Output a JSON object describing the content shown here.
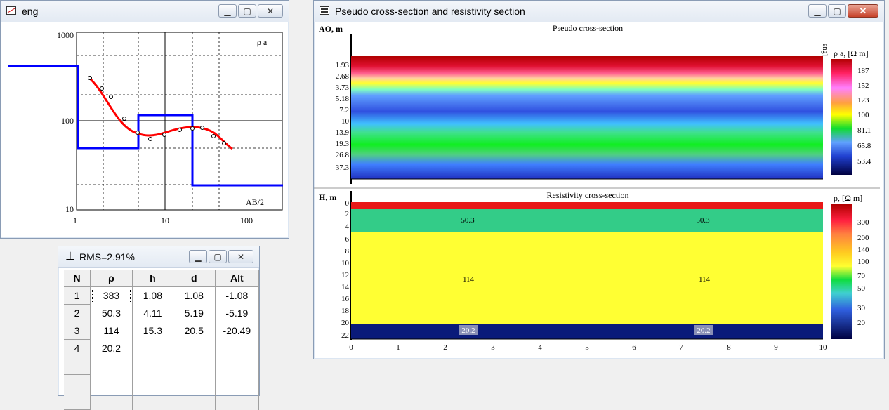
{
  "eng_window": {
    "title": "eng",
    "y_axis_label": "ρ a",
    "x_axis_label": "AB/2",
    "y_ticks": [
      "1000",
      "100",
      "10"
    ],
    "x_ticks": [
      "1",
      "10",
      "100"
    ]
  },
  "rms_window": {
    "title": "RMS=2.91%",
    "columns": [
      "N",
      "ρ",
      "h",
      "d",
      "Alt"
    ],
    "rows": [
      {
        "n": "1",
        "rho": "383",
        "h": "1.08",
        "d": "1.08",
        "alt": "-1.08"
      },
      {
        "n": "2",
        "rho": "50.3",
        "h": "4.11",
        "d": "5.19",
        "alt": "-5.19"
      },
      {
        "n": "3",
        "rho": "114",
        "h": "15.3",
        "d": "20.5",
        "alt": "-20.49"
      },
      {
        "n": "4",
        "rho": "20.2",
        "h": "",
        "d": "",
        "alt": ""
      }
    ]
  },
  "section_window": {
    "title": "Pseudo cross-section and resistivity section",
    "pseudo": {
      "title": "Pseudo cross-section",
      "y_axis_label": "AO, m",
      "profile_label": "eng]",
      "y_ticks": [
        "1.93",
        "2.68",
        "3.73",
        "5.18",
        "7.2",
        "10",
        "13.9",
        "19.3",
        "26.8",
        "37.3"
      ],
      "legend_title": "ρ a, [Ω m]",
      "legend_values": [
        "187",
        "152",
        "123",
        "100",
        "81.1",
        "65.8",
        "53.4"
      ]
    },
    "resistivity": {
      "title": "Resistivity cross-section",
      "y_axis_label": "H, m",
      "y_ticks": [
        "0",
        "2",
        "4",
        "6",
        "8",
        "10",
        "12",
        "14",
        "16",
        "18",
        "20",
        "22"
      ],
      "x_ticks": [
        "0",
        "1",
        "2",
        "3",
        "4",
        "5",
        "6",
        "7",
        "8",
        "9",
        "10"
      ],
      "legend_title": "ρ, [Ω m]",
      "legend_values": [
        "300",
        "200",
        "140",
        "100",
        "70",
        "50",
        "30",
        "20"
      ],
      "layer_labels": [
        "50.3",
        "50.3",
        "114",
        "114",
        "20.2",
        "20.2"
      ]
    }
  },
  "colors": {
    "curve_model": "#0000ff",
    "curve_fit": "#ff0000",
    "layer1": "#e81818",
    "layer2": "#33cc88",
    "layer3": "#ffff33",
    "layer4": "#0a1a7a",
    "close_button": "#c7432b"
  }
}
